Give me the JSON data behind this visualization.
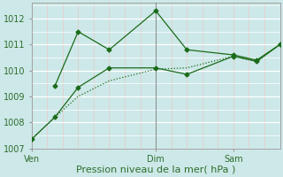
{
  "background_color": "#cde8e8",
  "plot_bg_color": "#cde8e8",
  "grid_major_color": "#ffffff",
  "grid_minor_color": "#e8c8c8",
  "line_color": "#1a6b1a",
  "ylim": [
    1007,
    1012.6
  ],
  "yticks": [
    1007,
    1008,
    1009,
    1010,
    1011,
    1012
  ],
  "xlabel": "Pression niveau de la mer( hPa )",
  "xlabel_fontsize": 8,
  "tick_label_color": "#2d6e2d",
  "tick_fontsize": 7,
  "xtick_labels": [
    "Ven",
    "Dim",
    "Sam"
  ],
  "xtick_positions": [
    0,
    8,
    13
  ],
  "xlim": [
    0,
    16
  ],
  "vline_x": 8,
  "vline_color": "#888888",
  "line1_x": [
    0,
    1.5,
    3,
    5,
    8,
    10,
    13,
    14.5,
    16
  ],
  "line1_y": [
    1007.35,
    1008.2,
    1009.35,
    1010.1,
    1010.1,
    1009.85,
    1010.55,
    1010.35,
    1011.0
  ],
  "line2_x": [
    1.5,
    3,
    5,
    8,
    10,
    13,
    14.5,
    16
  ],
  "line2_y": [
    1009.4,
    1011.5,
    1010.8,
    1012.3,
    1010.8,
    1010.6,
    1010.4,
    1011.0
  ],
  "line3_x": [
    0,
    1.5,
    3,
    5,
    8,
    10,
    13,
    14.5,
    16
  ],
  "line3_y": [
    1007.35,
    1008.2,
    1009.0,
    1009.6,
    1010.05,
    1010.1,
    1010.55,
    1010.35,
    1011.0
  ],
  "marker_size": 2.5,
  "linewidth": 0.9
}
